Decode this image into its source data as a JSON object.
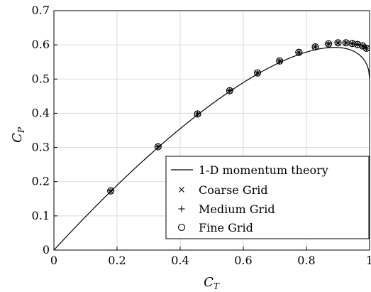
{
  "chart_data": {
    "type": "line",
    "title": "",
    "xlabel": {
      "main": "C",
      "sub": "T"
    },
    "ylabel": {
      "main": "C",
      "sub": "P"
    },
    "xlim": [
      0,
      1
    ],
    "ylim": [
      0,
      0.7
    ],
    "xticks": [
      0,
      0.2,
      0.4,
      0.6,
      0.8,
      1
    ],
    "xtick_labels": [
      "0",
      "0.2",
      "0.4",
      "0.6",
      "0.8",
      "1"
    ],
    "yticks": [
      0,
      0.1,
      0.2,
      0.3,
      0.4,
      0.5,
      0.6,
      0.7
    ],
    "ytick_labels": [
      "0",
      "0.1",
      "0.2",
      "0.3",
      "0.4",
      "0.5",
      "0.6",
      "0.7"
    ],
    "grid": true,
    "legend_position": "bottom-right",
    "series": [
      {
        "name": "1-D momentum theory",
        "kind": "line",
        "color": "#000000"
      },
      {
        "name": "Coarse Grid",
        "kind": "marker",
        "marker": "x",
        "x": [
          0.18,
          0.33,
          0.455,
          0.557,
          0.645,
          0.715,
          0.776,
          0.828,
          0.87,
          0.9,
          0.925,
          0.945,
          0.962,
          0.978,
          0.99
        ],
        "y": [
          0.173,
          0.302,
          0.398,
          0.466,
          0.518,
          0.553,
          0.578,
          0.594,
          0.603,
          0.606,
          0.606,
          0.604,
          0.601,
          0.597,
          0.59
        ]
      },
      {
        "name": "Medium Grid",
        "kind": "marker",
        "marker": "+",
        "x": [
          0.18,
          0.33,
          0.455,
          0.557,
          0.645,
          0.715,
          0.776,
          0.828,
          0.87,
          0.9,
          0.925,
          0.945,
          0.962,
          0.978,
          0.99
        ],
        "y": [
          0.173,
          0.302,
          0.398,
          0.466,
          0.518,
          0.553,
          0.578,
          0.594,
          0.603,
          0.606,
          0.606,
          0.604,
          0.601,
          0.597,
          0.59
        ]
      },
      {
        "name": "Fine Grid",
        "kind": "marker",
        "marker": "o",
        "x": [
          0.18,
          0.33,
          0.455,
          0.557,
          0.645,
          0.715,
          0.776,
          0.828,
          0.87,
          0.9,
          0.925,
          0.945,
          0.962,
          0.978,
          0.99
        ],
        "y": [
          0.173,
          0.302,
          0.398,
          0.466,
          0.518,
          0.553,
          0.578,
          0.594,
          0.603,
          0.606,
          0.606,
          0.604,
          0.601,
          0.597,
          0.59
        ]
      }
    ]
  }
}
